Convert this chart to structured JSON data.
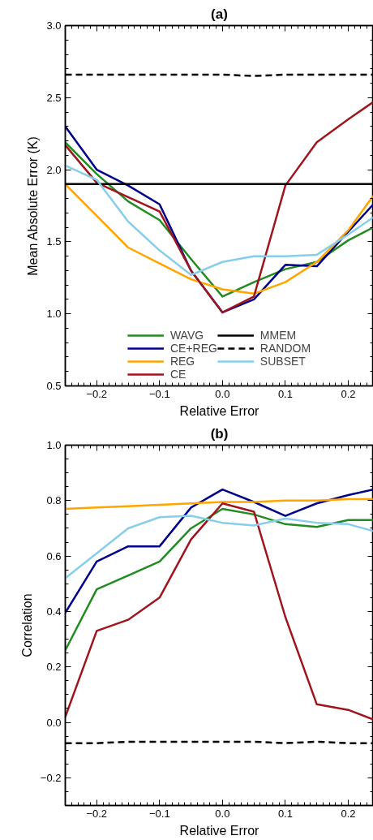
{
  "chart_data": [
    {
      "type": "line",
      "title": "(a)",
      "xlabel": "Relative Error",
      "ylabel": "Mean Absolute Error (K)",
      "x": [
        -0.25,
        -0.2,
        -0.15,
        -0.1,
        -0.05,
        0,
        0.05,
        0.1,
        0.15,
        0.2,
        0.24
      ],
      "xlim": [
        -0.25,
        0.24
      ],
      "ylim": [
        0.5,
        3.0
      ],
      "xticks": [
        {
          "value": -0.2,
          "label": "−0.2"
        },
        {
          "value": -0.1,
          "label": "−0.1"
        },
        {
          "value": 0,
          "label": "0.0"
        },
        {
          "value": 0.1,
          "label": "0.1"
        },
        {
          "value": 0.2,
          "label": "0.2"
        }
      ],
      "yticks": [
        {
          "value": 0.5,
          "label": "0.5"
        },
        {
          "value": 1,
          "label": "1.0"
        },
        {
          "value": 1.5,
          "label": "1.5"
        },
        {
          "value": 2,
          "label": "2.0"
        },
        {
          "value": 2.5,
          "label": "2.5"
        },
        {
          "value": 3,
          "label": "3.0"
        }
      ],
      "legend": "bottom",
      "grid": false,
      "series": [
        {
          "name": "WAVG",
          "color": "#228b22",
          "values": [
            2.19,
            1.97,
            1.78,
            1.65,
            1.38,
            1.12,
            1.22,
            1.31,
            1.36,
            1.51,
            1.6
          ]
        },
        {
          "name": "CE+REG",
          "color": "#00008b",
          "values": [
            2.3,
            2.0,
            1.89,
            1.76,
            1.3,
            1.01,
            1.1,
            1.34,
            1.33,
            1.57,
            1.76
          ]
        },
        {
          "name": "REG",
          "color": "#ffa500",
          "values": [
            1.9,
            1.68,
            1.46,
            1.35,
            1.24,
            1.17,
            1.14,
            1.22,
            1.36,
            1.58,
            1.82
          ]
        },
        {
          "name": "CE",
          "color": "#a0141e",
          "values": [
            2.17,
            1.91,
            1.81,
            1.71,
            1.3,
            1.01,
            1.12,
            1.89,
            2.19,
            2.35,
            2.47
          ]
        },
        {
          "name": "MMEM",
          "color": "#000000",
          "values": [
            1.9,
            1.9,
            1.9,
            1.9,
            1.9,
            1.9,
            1.9,
            1.9,
            1.9,
            1.9,
            1.9
          ]
        },
        {
          "name": "RANDOM",
          "color": "#000000",
          "line_style": "dashed",
          "values": [
            2.66,
            2.66,
            2.66,
            2.66,
            2.66,
            2.66,
            2.65,
            2.66,
            2.66,
            2.66,
            2.66
          ]
        },
        {
          "name": "SUBSET",
          "color": "#87ceeb",
          "values": [
            2.03,
            1.93,
            1.64,
            1.44,
            1.27,
            1.36,
            1.4,
            1.4,
            1.41,
            1.55,
            1.67
          ]
        }
      ]
    },
    {
      "type": "line",
      "title": "(b)",
      "xlabel": "Relative Error",
      "ylabel": "Correlation",
      "x": [
        -0.25,
        -0.2,
        -0.15,
        -0.1,
        -0.05,
        0,
        0.05,
        0.1,
        0.15,
        0.2,
        0.24
      ],
      "xlim": [
        -0.25,
        0.24
      ],
      "ylim": [
        -0.3,
        1.0
      ],
      "xticks": [
        {
          "value": -0.2,
          "label": "−0.2"
        },
        {
          "value": -0.1,
          "label": "−0.1"
        },
        {
          "value": 0,
          "label": "0.0"
        },
        {
          "value": 0.1,
          "label": "0.1"
        },
        {
          "value": 0.2,
          "label": "0.2"
        }
      ],
      "yticks": [
        {
          "value": -0.2,
          "label": "−0.2"
        },
        {
          "value": 0,
          "label": "0.0"
        },
        {
          "value": 0.2,
          "label": "0.2"
        },
        {
          "value": 0.4,
          "label": "0.4"
        },
        {
          "value": 0.6,
          "label": "0.6"
        },
        {
          "value": 0.8,
          "label": "0.8"
        },
        {
          "value": 1,
          "label": "1.0"
        }
      ],
      "grid": false,
      "series": [
        {
          "color": "#228b22",
          "values": [
            0.26,
            0.48,
            0.53,
            0.58,
            0.7,
            0.77,
            0.75,
            0.715,
            0.705,
            0.73,
            0.73
          ]
        },
        {
          "color": "#00008b",
          "values": [
            0.395,
            0.58,
            0.635,
            0.635,
            0.775,
            0.84,
            0.795,
            0.745,
            0.79,
            0.82,
            0.84
          ]
        },
        {
          "color": "#ffa500",
          "values": [
            0.77,
            0.775,
            0.78,
            0.785,
            0.79,
            0.795,
            0.795,
            0.8,
            0.8,
            0.805,
            0.805
          ]
        },
        {
          "color": "#a0141e",
          "values": [
            0.02,
            0.33,
            0.37,
            0.45,
            0.66,
            0.79,
            0.76,
            0.38,
            0.065,
            0.045,
            0.01
          ]
        },
        {
          "color": "#000000",
          "line_style": "dashed",
          "values": [
            -0.075,
            -0.075,
            -0.07,
            -0.07,
            -0.07,
            -0.07,
            -0.07,
            -0.075,
            -0.07,
            -0.075,
            -0.075
          ]
        },
        {
          "color": "#87ceeb",
          "values": [
            0.52,
            0.61,
            0.7,
            0.74,
            0.745,
            0.72,
            0.71,
            0.735,
            0.72,
            0.715,
            0.69
          ]
        }
      ]
    }
  ]
}
